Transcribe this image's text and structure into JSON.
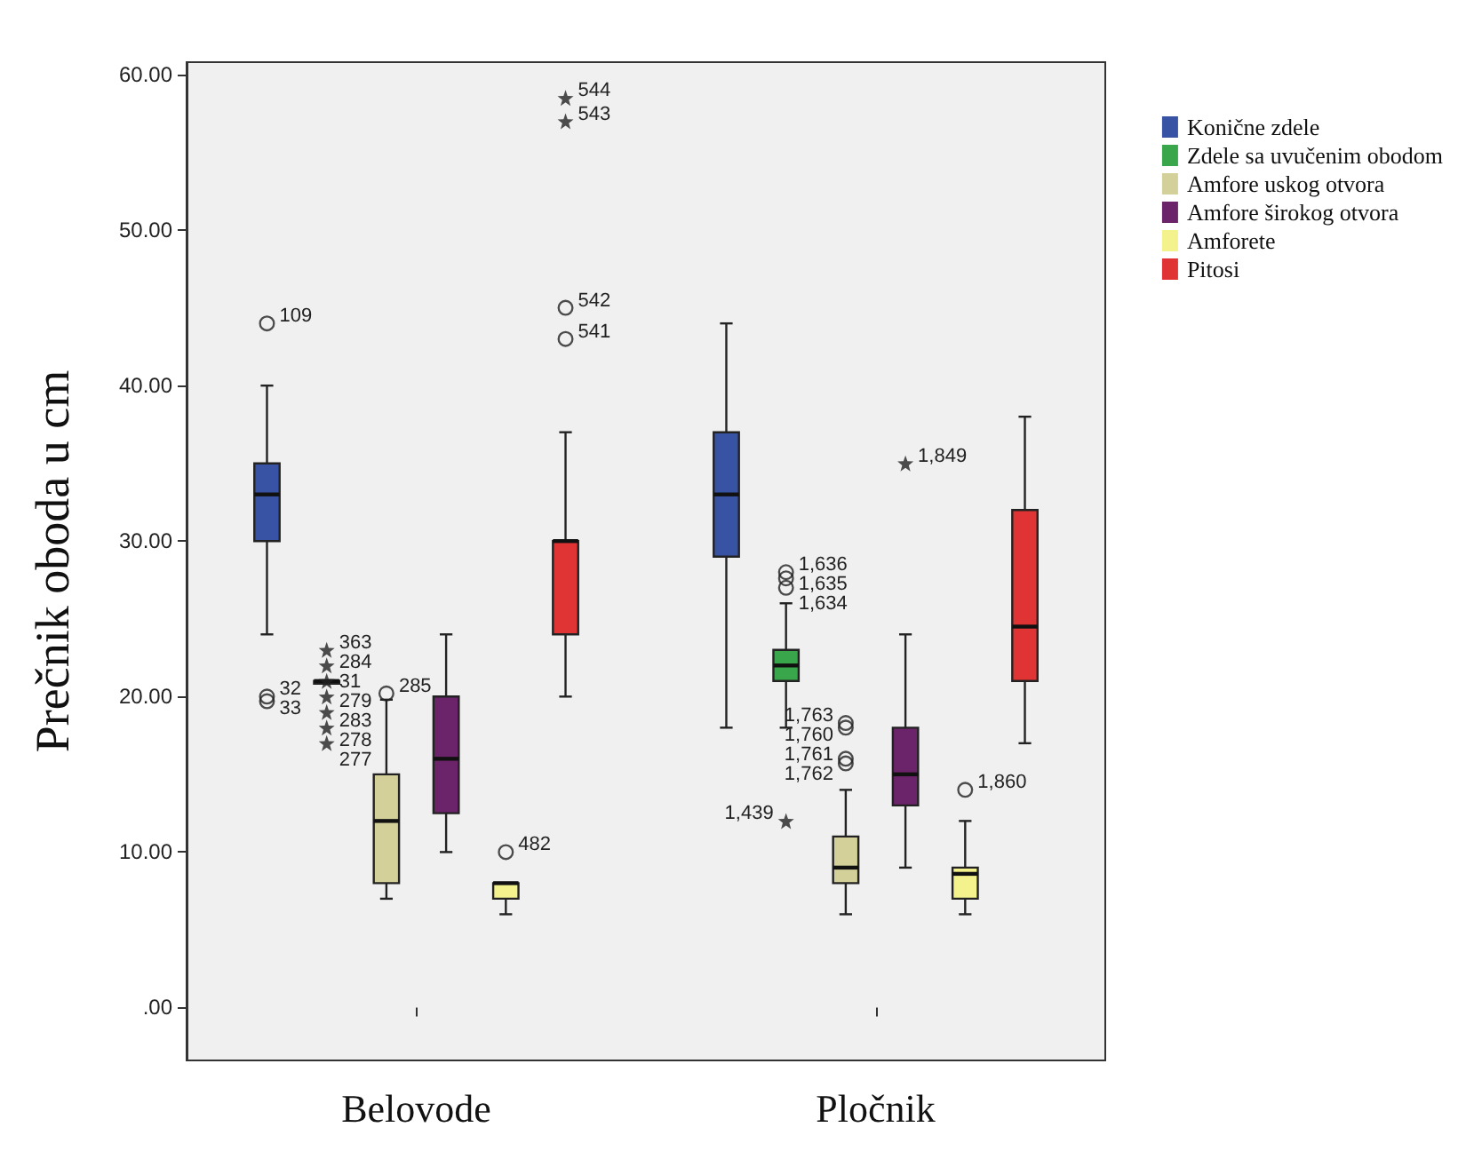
{
  "chart_data": {
    "type": "box",
    "ylabel": "Prečnik oboda u cm",
    "categories": [
      "Belovode",
      "Pločnik"
    ],
    "ylim": [
      -3.4,
      60.8
    ],
    "yticks": [
      {
        "value": 0,
        "label": ".00"
      },
      {
        "value": 10,
        "label": "10.00"
      },
      {
        "value": 20,
        "label": "20.00"
      },
      {
        "value": 30,
        "label": "30.00"
      },
      {
        "value": 40,
        "label": "40.00"
      },
      {
        "value": 50,
        "label": "50.00"
      },
      {
        "value": 60,
        "label": "60.00"
      }
    ],
    "grid": false,
    "legend": "right",
    "series": [
      {
        "name": "Konične zdele",
        "color": "#3953a4",
        "boxes": [
          {
            "low": 24,
            "q1": 30,
            "median": 33,
            "q3": 35,
            "high": 40
          },
          {
            "low": 18,
            "q1": 29,
            "median": 33,
            "q3": 37,
            "high": 44
          }
        ]
      },
      {
        "type": "scatter",
        "marker": "circle",
        "color": "#222222",
        "x": [
          "Belovode",
          "Belovode",
          "Belovode"
        ],
        "values": [
          44,
          20,
          19.7
        ]
      },
      {
        "name": "Zdele sa uvučenim obodom",
        "color": "#3aa64b",
        "boxes": [
          {
            "low": 21,
            "q1": 21,
            "median": 21,
            "q3": 21,
            "high": 21
          },
          {
            "low": 18,
            "q1": 21,
            "median": 22,
            "q3": 23,
            "high": 26
          }
        ]
      },
      {
        "type": "scatter",
        "marker": "star",
        "color": "#222222",
        "x": [
          "Belovode",
          "Belovode",
          "Belovode",
          "Belovode",
          "Belovode",
          "Belovode",
          "Belovode",
          "Pločnik"
        ],
        "values": [
          23,
          22,
          21,
          20,
          19,
          18,
          17,
          12
        ]
      },
      {
        "type": "scatter",
        "marker": "circle",
        "color": "#222222",
        "x": [
          "Pločnik",
          "Pločnik",
          "Pločnik"
        ],
        "values": [
          28,
          27.6,
          27
        ]
      },
      {
        "name": "Amfore uskog otvora",
        "color": "#d4d09a",
        "boxes": [
          {
            "low": 7,
            "q1": 8,
            "median": 12,
            "q3": 15,
            "high": 19.8
          },
          {
            "low": 6,
            "q1": 8,
            "median": 9,
            "q3": 11,
            "high": 14
          }
        ]
      },
      {
        "type": "scatter",
        "marker": "circle",
        "color": "#222222",
        "x": [
          "Belovode",
          "Pločnik",
          "Pločnik",
          "Pločnik",
          "Pločnik"
        ],
        "values": [
          20.2,
          18.3,
          18,
          16,
          15.7
        ]
      },
      {
        "name": "Amfore širokog otvora",
        "color": "#6b2369",
        "boxes": [
          {
            "low": 10,
            "q1": 12.5,
            "median": 16,
            "q3": 20,
            "high": 24
          },
          {
            "low": 9,
            "q1": 13,
            "median": 15,
            "q3": 18,
            "high": 24
          }
        ]
      },
      {
        "type": "scatter",
        "marker": "star",
        "color": "#222222",
        "x": [
          "Pločnik"
        ],
        "values": [
          35
        ]
      },
      {
        "name": "Amforete",
        "color": "#f4f28c",
        "boxes": [
          {
            "low": 6,
            "q1": 7,
            "median": 8,
            "q3": 8,
            "high": 8
          },
          {
            "low": 6,
            "q1": 7,
            "median": 8.6,
            "q3": 9,
            "high": 12
          }
        ]
      },
      {
        "type": "scatter",
        "marker": "circle",
        "color": "#222222",
        "x": [
          "Belovode",
          "Pločnik"
        ],
        "values": [
          10,
          14
        ]
      },
      {
        "name": "Pitosi",
        "color": "#e03434",
        "boxes": [
          {
            "low": 20,
            "q1": 24,
            "median": 30,
            "q3": 30,
            "high": 37
          },
          {
            "low": 17,
            "q1": 21,
            "median": 24.5,
            "q3": 32,
            "high": 38
          }
        ]
      },
      {
        "type": "scatter",
        "marker": "star",
        "color": "#222222",
        "x": [
          "Belovode",
          "Belovode"
        ],
        "values": [
          58.5,
          57
        ]
      },
      {
        "type": "scatter",
        "marker": "circle",
        "color": "#222222",
        "x": [
          "Belovode",
          "Belovode"
        ],
        "values": [
          45,
          43
        ]
      }
    ],
    "annotations": [
      "109",
      "32",
      "33",
      "363",
      "284",
      "31",
      "279",
      "283",
      "278",
      "277",
      "1,439",
      "1,636",
      "1,635",
      "1,634",
      "285",
      "1,763",
      "1,760",
      "1,761",
      "1,762",
      "1,849",
      "482",
      "1,860",
      "544",
      "543",
      "542",
      "541"
    ]
  }
}
